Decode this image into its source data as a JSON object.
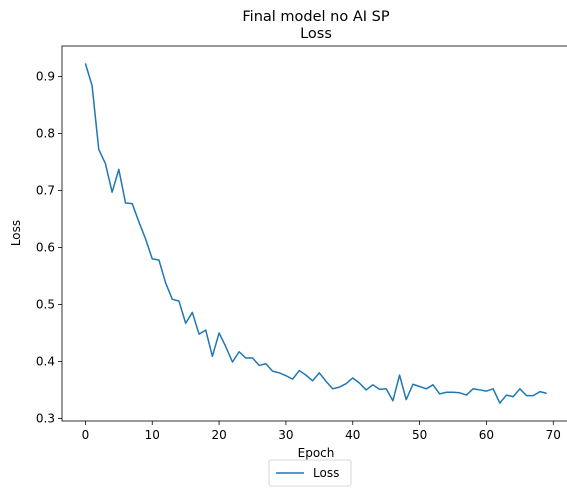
{
  "chart_data": {
    "type": "line",
    "title": "Final model no AI SP",
    "subtitle": "Loss",
    "xlabel": "Epoch",
    "ylabel": "Loss",
    "xlim": [
      -3.5,
      72.5
    ],
    "ylim": [
      0.2955,
      0.9535
    ],
    "xticks": [
      0,
      10,
      20,
      30,
      40,
      50,
      60,
      70
    ],
    "yticks": [
      0.3,
      0.4,
      0.5,
      0.6,
      0.7,
      0.8,
      0.9
    ],
    "ytick_labels": [
      "0.3",
      "0.4",
      "0.5",
      "0.6",
      "0.7",
      "0.8",
      "0.9"
    ],
    "grid": false,
    "legend": {
      "placement": "below-center",
      "entries": [
        "Loss"
      ]
    },
    "series": [
      {
        "name": "Loss",
        "color": "#1f77b4",
        "x": [
          0,
          1,
          2,
          3,
          4,
          5,
          6,
          7,
          8,
          9,
          10,
          11,
          12,
          13,
          14,
          15,
          16,
          17,
          18,
          19,
          20,
          21,
          22,
          23,
          24,
          25,
          26,
          27,
          28,
          29,
          30,
          31,
          32,
          33,
          34,
          35,
          36,
          37,
          38,
          39,
          40,
          41,
          42,
          43,
          44,
          45,
          46,
          47,
          48,
          49,
          50,
          51,
          52,
          53,
          54,
          55,
          56,
          57,
          58,
          59,
          60,
          61,
          62,
          63,
          64,
          65,
          66,
          67,
          68,
          69
        ],
        "y": [
          0.923,
          0.884,
          0.772,
          0.747,
          0.697,
          0.737,
          0.678,
          0.677,
          0.645,
          0.615,
          0.58,
          0.578,
          0.538,
          0.509,
          0.506,
          0.467,
          0.486,
          0.448,
          0.455,
          0.409,
          0.45,
          0.426,
          0.399,
          0.417,
          0.406,
          0.406,
          0.393,
          0.396,
          0.383,
          0.38,
          0.375,
          0.369,
          0.384,
          0.376,
          0.366,
          0.38,
          0.365,
          0.352,
          0.355,
          0.361,
          0.371,
          0.362,
          0.35,
          0.359,
          0.351,
          0.352,
          0.331,
          0.376,
          0.333,
          0.36,
          0.356,
          0.352,
          0.359,
          0.343,
          0.346,
          0.346,
          0.345,
          0.341,
          0.352,
          0.35,
          0.348,
          0.352,
          0.327,
          0.341,
          0.338,
          0.352,
          0.34,
          0.34,
          0.347,
          0.344
        ]
      }
    ]
  }
}
